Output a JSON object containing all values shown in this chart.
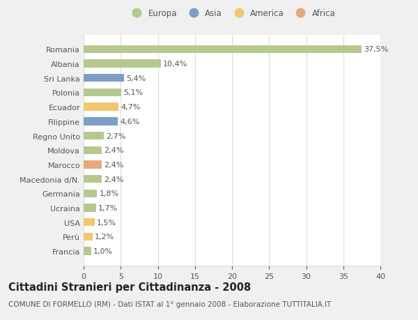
{
  "categories": [
    "Romania",
    "Albania",
    "Sri Lanka",
    "Polonia",
    "Ecuador",
    "Filippine",
    "Regno Unito",
    "Moldova",
    "Marocco",
    "Macedonia d/N.",
    "Germania",
    "Ucraina",
    "USA",
    "Perù",
    "Francia"
  ],
  "values": [
    37.5,
    10.4,
    5.4,
    5.1,
    4.7,
    4.6,
    2.7,
    2.4,
    2.4,
    2.4,
    1.8,
    1.7,
    1.5,
    1.2,
    1.0
  ],
  "labels": [
    "37,5%",
    "10,4%",
    "5,4%",
    "5,1%",
    "4,7%",
    "4,6%",
    "2,7%",
    "2,4%",
    "2,4%",
    "2,4%",
    "1,8%",
    "1,7%",
    "1,5%",
    "1,2%",
    "1,0%"
  ],
  "colors": [
    "#b5c98e",
    "#b5c98e",
    "#7b9fc7",
    "#b5c98e",
    "#f0c96e",
    "#7b9fc7",
    "#b5c98e",
    "#b5c98e",
    "#e8a87c",
    "#b5c98e",
    "#b5c98e",
    "#b5c98e",
    "#f0c96e",
    "#f0c96e",
    "#b5c98e"
  ],
  "legend": {
    "Europa": "#b5c98e",
    "Asia": "#7b9fc7",
    "America": "#f0c96e",
    "Africa": "#e8a87c"
  },
  "xlim": [
    0,
    40
  ],
  "xticks": [
    0,
    5,
    10,
    15,
    20,
    25,
    30,
    35,
    40
  ],
  "title": "Cittadini Stranieri per Cittadinanza - 2008",
  "subtitle": "COMUNE DI FORMELLO (RM) - Dati ISTAT al 1° gennaio 2008 - Elaborazione TUTTITALIA.IT",
  "fig_background_color": "#f0f0f0",
  "plot_background_color": "#ffffff",
  "grid_color": "#dddddd",
  "bar_height": 0.55,
  "label_fontsize": 8,
  "ytick_fontsize": 8,
  "xtick_fontsize": 8,
  "title_fontsize": 10.5,
  "subtitle_fontsize": 7.5,
  "text_color": "#555555"
}
